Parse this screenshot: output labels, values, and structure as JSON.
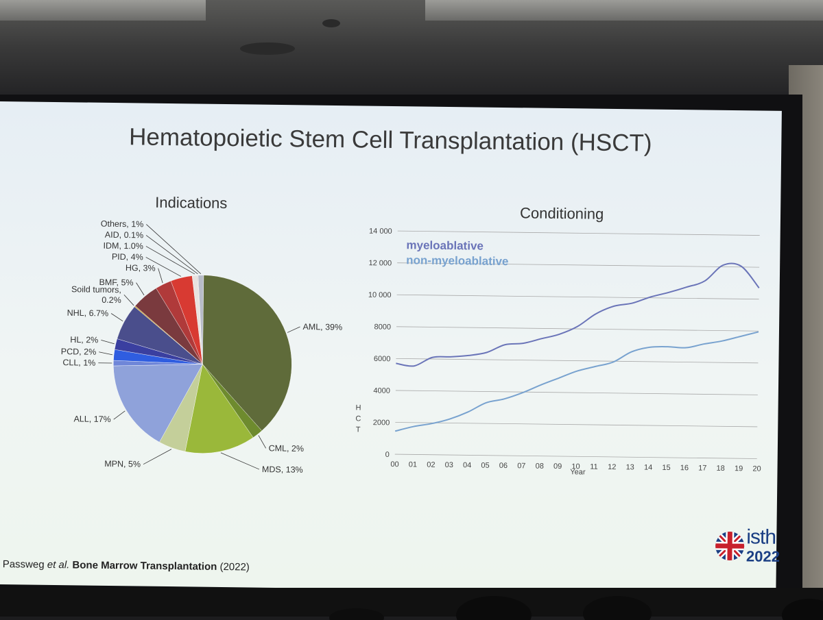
{
  "slide": {
    "title": "Hematopoietic Stem Cell Transplantation (HSCT)",
    "citation": {
      "authors": "Passweg",
      "etal": "et al.",
      "journal": "Bone Marrow Transplantation",
      "year": "(2022)"
    },
    "logo": {
      "word": "isth",
      "year": "2022",
      "flag_icon": "union-jack-icon"
    }
  },
  "chart_data": [
    {
      "type": "pie",
      "title": "Indications",
      "slices": [
        {
          "label": "AML, 39%",
          "value": 39,
          "color": "#5f6b3a"
        },
        {
          "label": "CML, 2%",
          "value": 2,
          "color": "#6e8b2e"
        },
        {
          "label": "MDS, 13%",
          "value": 13,
          "color": "#9ab83a"
        },
        {
          "label": "MPN, 5%",
          "value": 5,
          "color": "#c4cf9a"
        },
        {
          "label": "ALL, 17%",
          "value": 17,
          "color": "#8fa2da"
        },
        {
          "label": "CLL, 1%",
          "value": 1,
          "color": "#6f86d8"
        },
        {
          "label": "PCD, 2%",
          "value": 2,
          "color": "#2f5de0"
        },
        {
          "label": "HL, 2%",
          "value": 2,
          "color": "#3a3fa0"
        },
        {
          "label": "NHL, 6.7%",
          "value": 6.7,
          "color": "#4a4e8c"
        },
        {
          "label": "Soild tumors,\n0.2%",
          "value": 0.2,
          "color": "#c8a030"
        },
        {
          "label": "BMF, 5%",
          "value": 5,
          "color": "#7a3a3e"
        },
        {
          "label": "HG, 3%",
          "value": 3,
          "color": "#b03a3a"
        },
        {
          "label": "PID, 4%",
          "value": 4,
          "color": "#d83a32"
        },
        {
          "label": "IDM, 1.0%",
          "value": 1.0,
          "color": "#e8e2e0"
        },
        {
          "label": "AID, 0.1%",
          "value": 0.1,
          "color": "#9898a8"
        },
        {
          "label": "Others, 1%",
          "value": 1,
          "color": "#b8bcc8"
        }
      ]
    },
    {
      "type": "line",
      "title": "Conditioning",
      "xlabel": "Year",
      "ylabel": "HCT",
      "ylim": [
        0,
        14000
      ],
      "y_ticks": [
        "0",
        "2000",
        "4000",
        "6000",
        "8000",
        "10 000",
        "12 000",
        "14 000"
      ],
      "y_tick_values": [
        0,
        2000,
        4000,
        6000,
        8000,
        10000,
        12000,
        14000
      ],
      "x": [
        "00",
        "01",
        "02",
        "03",
        "04",
        "05",
        "06",
        "07",
        "08",
        "09",
        "10",
        "11",
        "12",
        "13",
        "14",
        "15",
        "16",
        "17",
        "18",
        "19",
        "20"
      ],
      "grid": true,
      "series": [
        {
          "name": "myeloablative",
          "color": "#6a74b8",
          "values": [
            5700,
            5550,
            6100,
            6150,
            6250,
            6450,
            6950,
            7050,
            7350,
            7650,
            8150,
            8950,
            9450,
            9650,
            10050,
            10350,
            10700,
            11100,
            12100,
            12050,
            10700
          ]
        },
        {
          "name": "non-myeloablative",
          "color": "#78a2cf",
          "values": [
            1450,
            1750,
            1950,
            2250,
            2700,
            3300,
            3550,
            3950,
            4450,
            4900,
            5350,
            5650,
            5950,
            6600,
            6900,
            6950,
            6900,
            7150,
            7350,
            7650,
            7950
          ]
        }
      ]
    }
  ]
}
